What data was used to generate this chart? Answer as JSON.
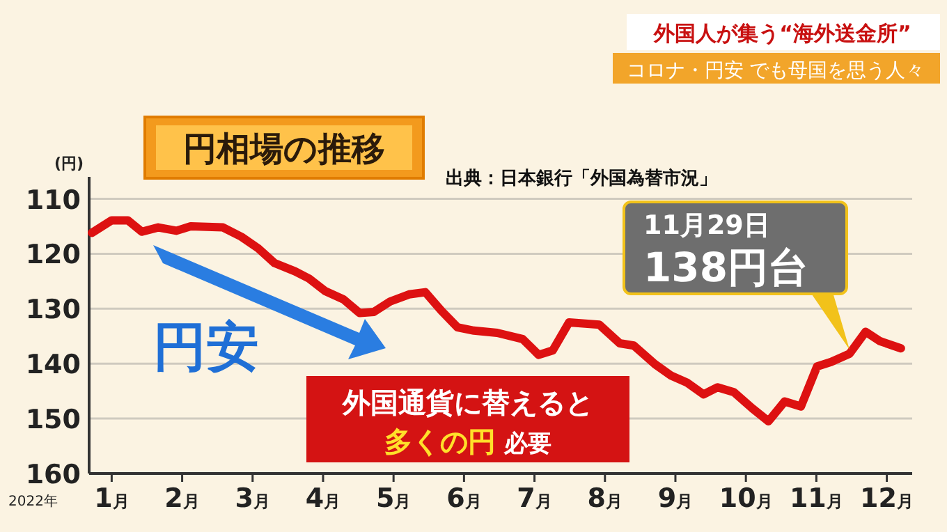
{
  "chart_data": {
    "type": "line",
    "title": "円相場の推移",
    "ylabel": "(円)",
    "annotations": [
      "外国人が集う“海外送金所”",
      "コロナ・円安 でも母国を思う人々",
      "出典：日本銀行「外国為替市況」",
      "円安",
      "外国通貨に替えると",
      "多くの円 必要",
      {
        "text": "11月29日\n138円台",
        "x": 11.47,
        "y": 138.2
      },
      "2022年"
    ],
    "x": [
      0.72,
      1.0,
      1.23,
      1.43,
      1.66,
      1.92,
      2.12,
      2.58,
      2.84,
      3.08,
      3.31,
      3.6,
      3.8,
      4.03,
      4.29,
      4.52,
      4.72,
      4.95,
      5.22,
      5.45,
      5.68,
      5.91,
      6.14,
      6.47,
      6.83,
      7.06,
      7.26,
      7.49,
      7.92,
      8.21,
      8.41,
      8.71,
      8.94,
      9.17,
      9.4,
      9.6,
      9.83,
      10.09,
      10.32,
      10.55,
      10.78,
      11.01,
      11.21,
      11.47,
      11.7,
      11.9,
      12.2
    ],
    "series": [
      {
        "color": "#dd1111",
        "values": [
          116.2,
          113.9,
          113.9,
          116.0,
          115.2,
          115.8,
          115.0,
          115.2,
          116.9,
          119.0,
          121.7,
          123.2,
          124.5,
          126.8,
          128.3,
          130.8,
          130.6,
          128.7,
          127.4,
          127.0,
          130.4,
          133.4,
          134.0,
          134.4,
          135.5,
          138.4,
          137.6,
          132.5,
          132.9,
          136.3,
          136.7,
          140.1,
          142.2,
          143.5,
          145.6,
          144.3,
          145.2,
          148.1,
          150.5,
          146.9,
          147.8,
          140.5,
          139.7,
          138.2,
          134.2,
          135.9,
          137.2
        ]
      }
    ],
    "xlim": [
      0.68,
      12.36
    ],
    "ylim": [
      160,
      106
    ],
    "xticks": [
      {
        "value": 1,
        "label": "1月"
      },
      {
        "value": 2,
        "label": "2月"
      },
      {
        "value": 3,
        "label": "3月"
      },
      {
        "value": 4,
        "label": "4月"
      },
      {
        "value": 5,
        "label": "5月"
      },
      {
        "value": 6,
        "label": "6月"
      },
      {
        "value": 7,
        "label": "7月"
      },
      {
        "value": 8,
        "label": "8月"
      },
      {
        "value": 9,
        "label": "9月"
      },
      {
        "value": 10,
        "label": "10月"
      },
      {
        "value": 11,
        "label": "11月"
      },
      {
        "value": 12,
        "label": "12月"
      }
    ],
    "yticks": [
      110,
      120,
      130,
      140,
      150,
      160
    ],
    "grid": "y",
    "line_style": "solid"
  }
}
